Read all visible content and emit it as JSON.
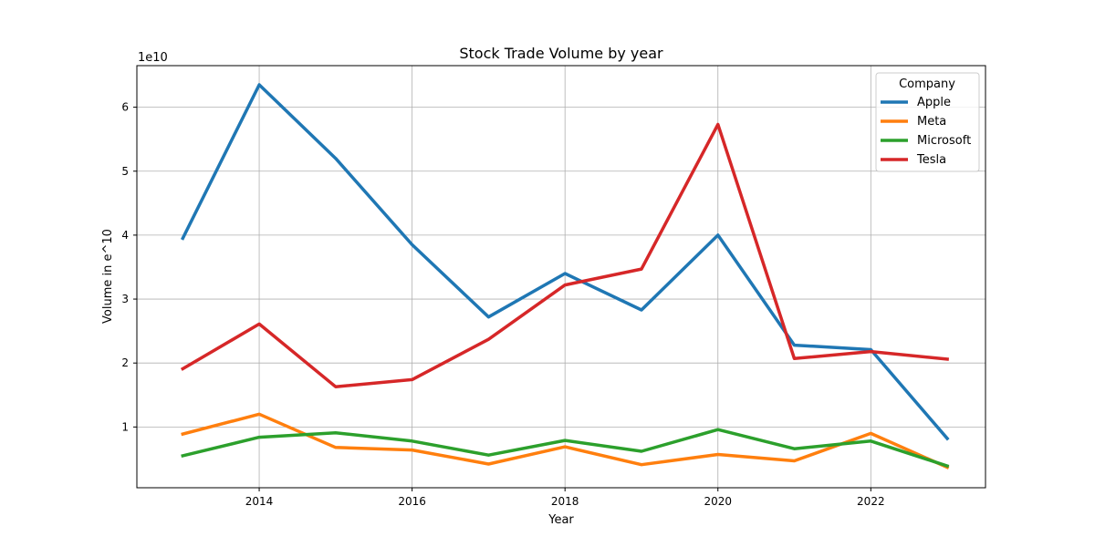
{
  "chart_data": {
    "type": "line",
    "title": "Stock Trade Volume by year",
    "xlabel": "Year",
    "ylabel": "Volume in e^10",
    "offset_label": "1e10",
    "x": [
      2013,
      2014,
      2015,
      2016,
      2017,
      2018,
      2019,
      2020,
      2021,
      2022,
      2023
    ],
    "xlim": [
      2012.4,
      2023.5
    ],
    "ylim": [
      0.05,
      6.65
    ],
    "x_ticks": [
      2014,
      2016,
      2018,
      2020,
      2022
    ],
    "y_ticks": [
      1,
      2,
      3,
      4,
      5,
      6
    ],
    "x_tick_labels": [
      "2014",
      "2016",
      "2018",
      "2020",
      "2022"
    ],
    "y_tick_labels": [
      "1",
      "2",
      "3",
      "4",
      "5",
      "6"
    ],
    "grid": true,
    "legend": {
      "title": "Company",
      "placement": "top-right"
    },
    "series": [
      {
        "name": "Apple",
        "color": "#1f77b4",
        "values": [
          3.95,
          6.35,
          5.2,
          3.85,
          2.72,
          3.4,
          2.83,
          4.0,
          2.28,
          2.21,
          0.82
        ]
      },
      {
        "name": "Meta",
        "color": "#ff7f0e",
        "values": [
          0.89,
          1.2,
          0.68,
          0.64,
          0.42,
          0.69,
          0.41,
          0.57,
          0.47,
          0.9,
          0.37
        ]
      },
      {
        "name": "Microsoft",
        "color": "#2ca02c",
        "values": [
          0.55,
          0.84,
          0.91,
          0.78,
          0.56,
          0.79,
          0.62,
          0.96,
          0.66,
          0.78,
          0.39
        ]
      },
      {
        "name": "Tesla",
        "color": "#d62728",
        "values": [
          1.91,
          2.61,
          1.63,
          1.74,
          2.37,
          3.22,
          3.47,
          5.73,
          2.07,
          2.18,
          2.06
        ]
      }
    ]
  }
}
